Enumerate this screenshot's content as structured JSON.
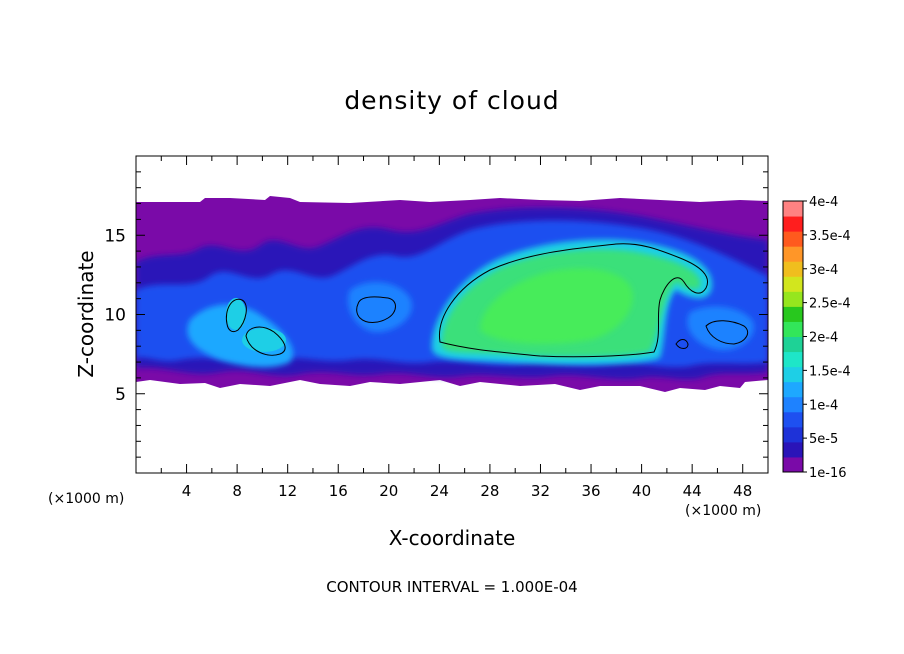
{
  "chart_data": {
    "type": "heatmap",
    "title": "density of cloud",
    "xlabel": "X-coordinate",
    "ylabel": "Z-coordinate",
    "x_unit": "(×1000 m)",
    "z_unit": "(×1000 m)",
    "xlim": [
      0,
      50
    ],
    "ylim": [
      0,
      20
    ],
    "x_ticks": [
      4,
      8,
      12,
      16,
      20,
      24,
      28,
      32,
      36,
      40,
      44,
      48
    ],
    "y_ticks": [
      5,
      10,
      15
    ],
    "contour_interval": "CONTOUR INTERVAL = 1.000E-04",
    "colorbar": {
      "labels": [
        "1e-16",
        "5e-5",
        "1e-4",
        "1.5e-4",
        "2e-4",
        "2.5e-4",
        "3e-4",
        "3.5e-4",
        "4e-4"
      ],
      "colors": [
        "#7a0aa8",
        "#2a14b8",
        "#1e32d8",
        "#1e50f0",
        "#1e82ff",
        "#1ea8ff",
        "#1ecfe6",
        "#1ee6c8",
        "#1ed296",
        "#32e65a",
        "#28c81e",
        "#96e61e",
        "#d2e61e",
        "#f0be1e",
        "#ff9628",
        "#ff5a1e",
        "#ff1e1e",
        "#ff8282"
      ]
    },
    "cloud_layer": {
      "z_bottom": 6.0,
      "z_top": 17.0
    },
    "core_region": {
      "x_range": [
        23.5,
        44
      ],
      "z_range": [
        7.2,
        14.4
      ],
      "level": "1e-4 to 2e-4"
    },
    "small_cells": [
      {
        "x_range": [
          7,
          9
        ],
        "z_range": [
          9,
          11
        ],
        "level": "1e-4"
      },
      {
        "x_range": [
          8.5,
          11.5
        ],
        "z_range": [
          7.5,
          9
        ],
        "level": "1e-4"
      },
      {
        "x_range": [
          17.5,
          20.5
        ],
        "z_range": [
          9.5,
          11
        ],
        "level": "1e-4"
      },
      {
        "x_range": [
          45.5,
          48.5
        ],
        "z_range": [
          8.5,
          9.5
        ],
        "level": "1e-4"
      }
    ]
  },
  "colors": {
    "background": "#ffffff",
    "axis": "#000000",
    "contour": "#000000"
  }
}
